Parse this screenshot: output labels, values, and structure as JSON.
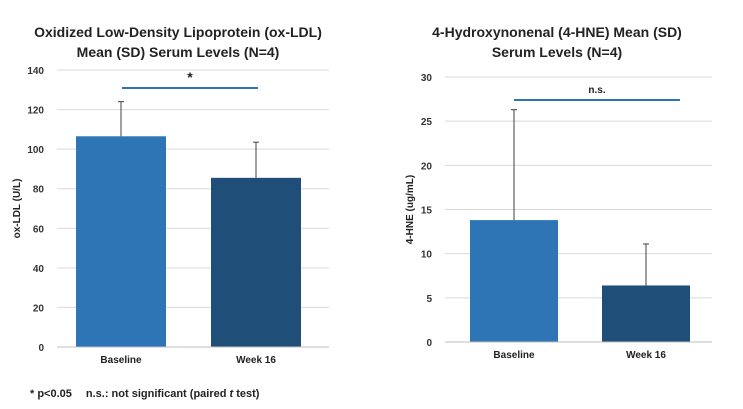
{
  "chart_data": [
    {
      "type": "bar",
      "title_lines": [
        "Oxidized Low-Density Lipoprotein (ox-LDL)",
        "Mean (SD) Serum Levels (N=4)"
      ],
      "ylabel": "ox-LDL (U/L)",
      "xlabel": "",
      "categories": [
        "Baseline",
        "Week 16"
      ],
      "values": [
        106.5,
        85.5
      ],
      "errors": [
        17.5,
        18
      ],
      "colors": [
        "#2E75B6",
        "#1F4E79"
      ],
      "ylim": [
        0,
        140
      ],
      "yticks": [
        0,
        20,
        40,
        60,
        80,
        100,
        120,
        140
      ],
      "grid": true,
      "significance": {
        "label": "*",
        "color": "#2E75B6"
      }
    },
    {
      "type": "bar",
      "title_lines": [
        "4-Hydroxynonenal (4-HNE) Mean (SD)",
        "Serum Levels (N=4)"
      ],
      "ylabel": "4-HNE (ug/mL)",
      "xlabel": "",
      "categories": [
        "Baseline",
        "Week 16"
      ],
      "values": [
        13.8,
        6.4
      ],
      "errors": [
        12.5,
        4.7
      ],
      "colors": [
        "#2E75B6",
        "#1F4E79"
      ],
      "ylim": [
        0,
        30
      ],
      "yticks": [
        0,
        5,
        10,
        15,
        20,
        25,
        30
      ],
      "grid": true,
      "significance": {
        "label": "n.s.",
        "color": "#2E75B6"
      }
    }
  ],
  "footnote": {
    "sig": "* p<0.05",
    "ns_prefix": "n.s.: not significant (paired ",
    "ns_italic": "t",
    "ns_suffix": " test)"
  }
}
